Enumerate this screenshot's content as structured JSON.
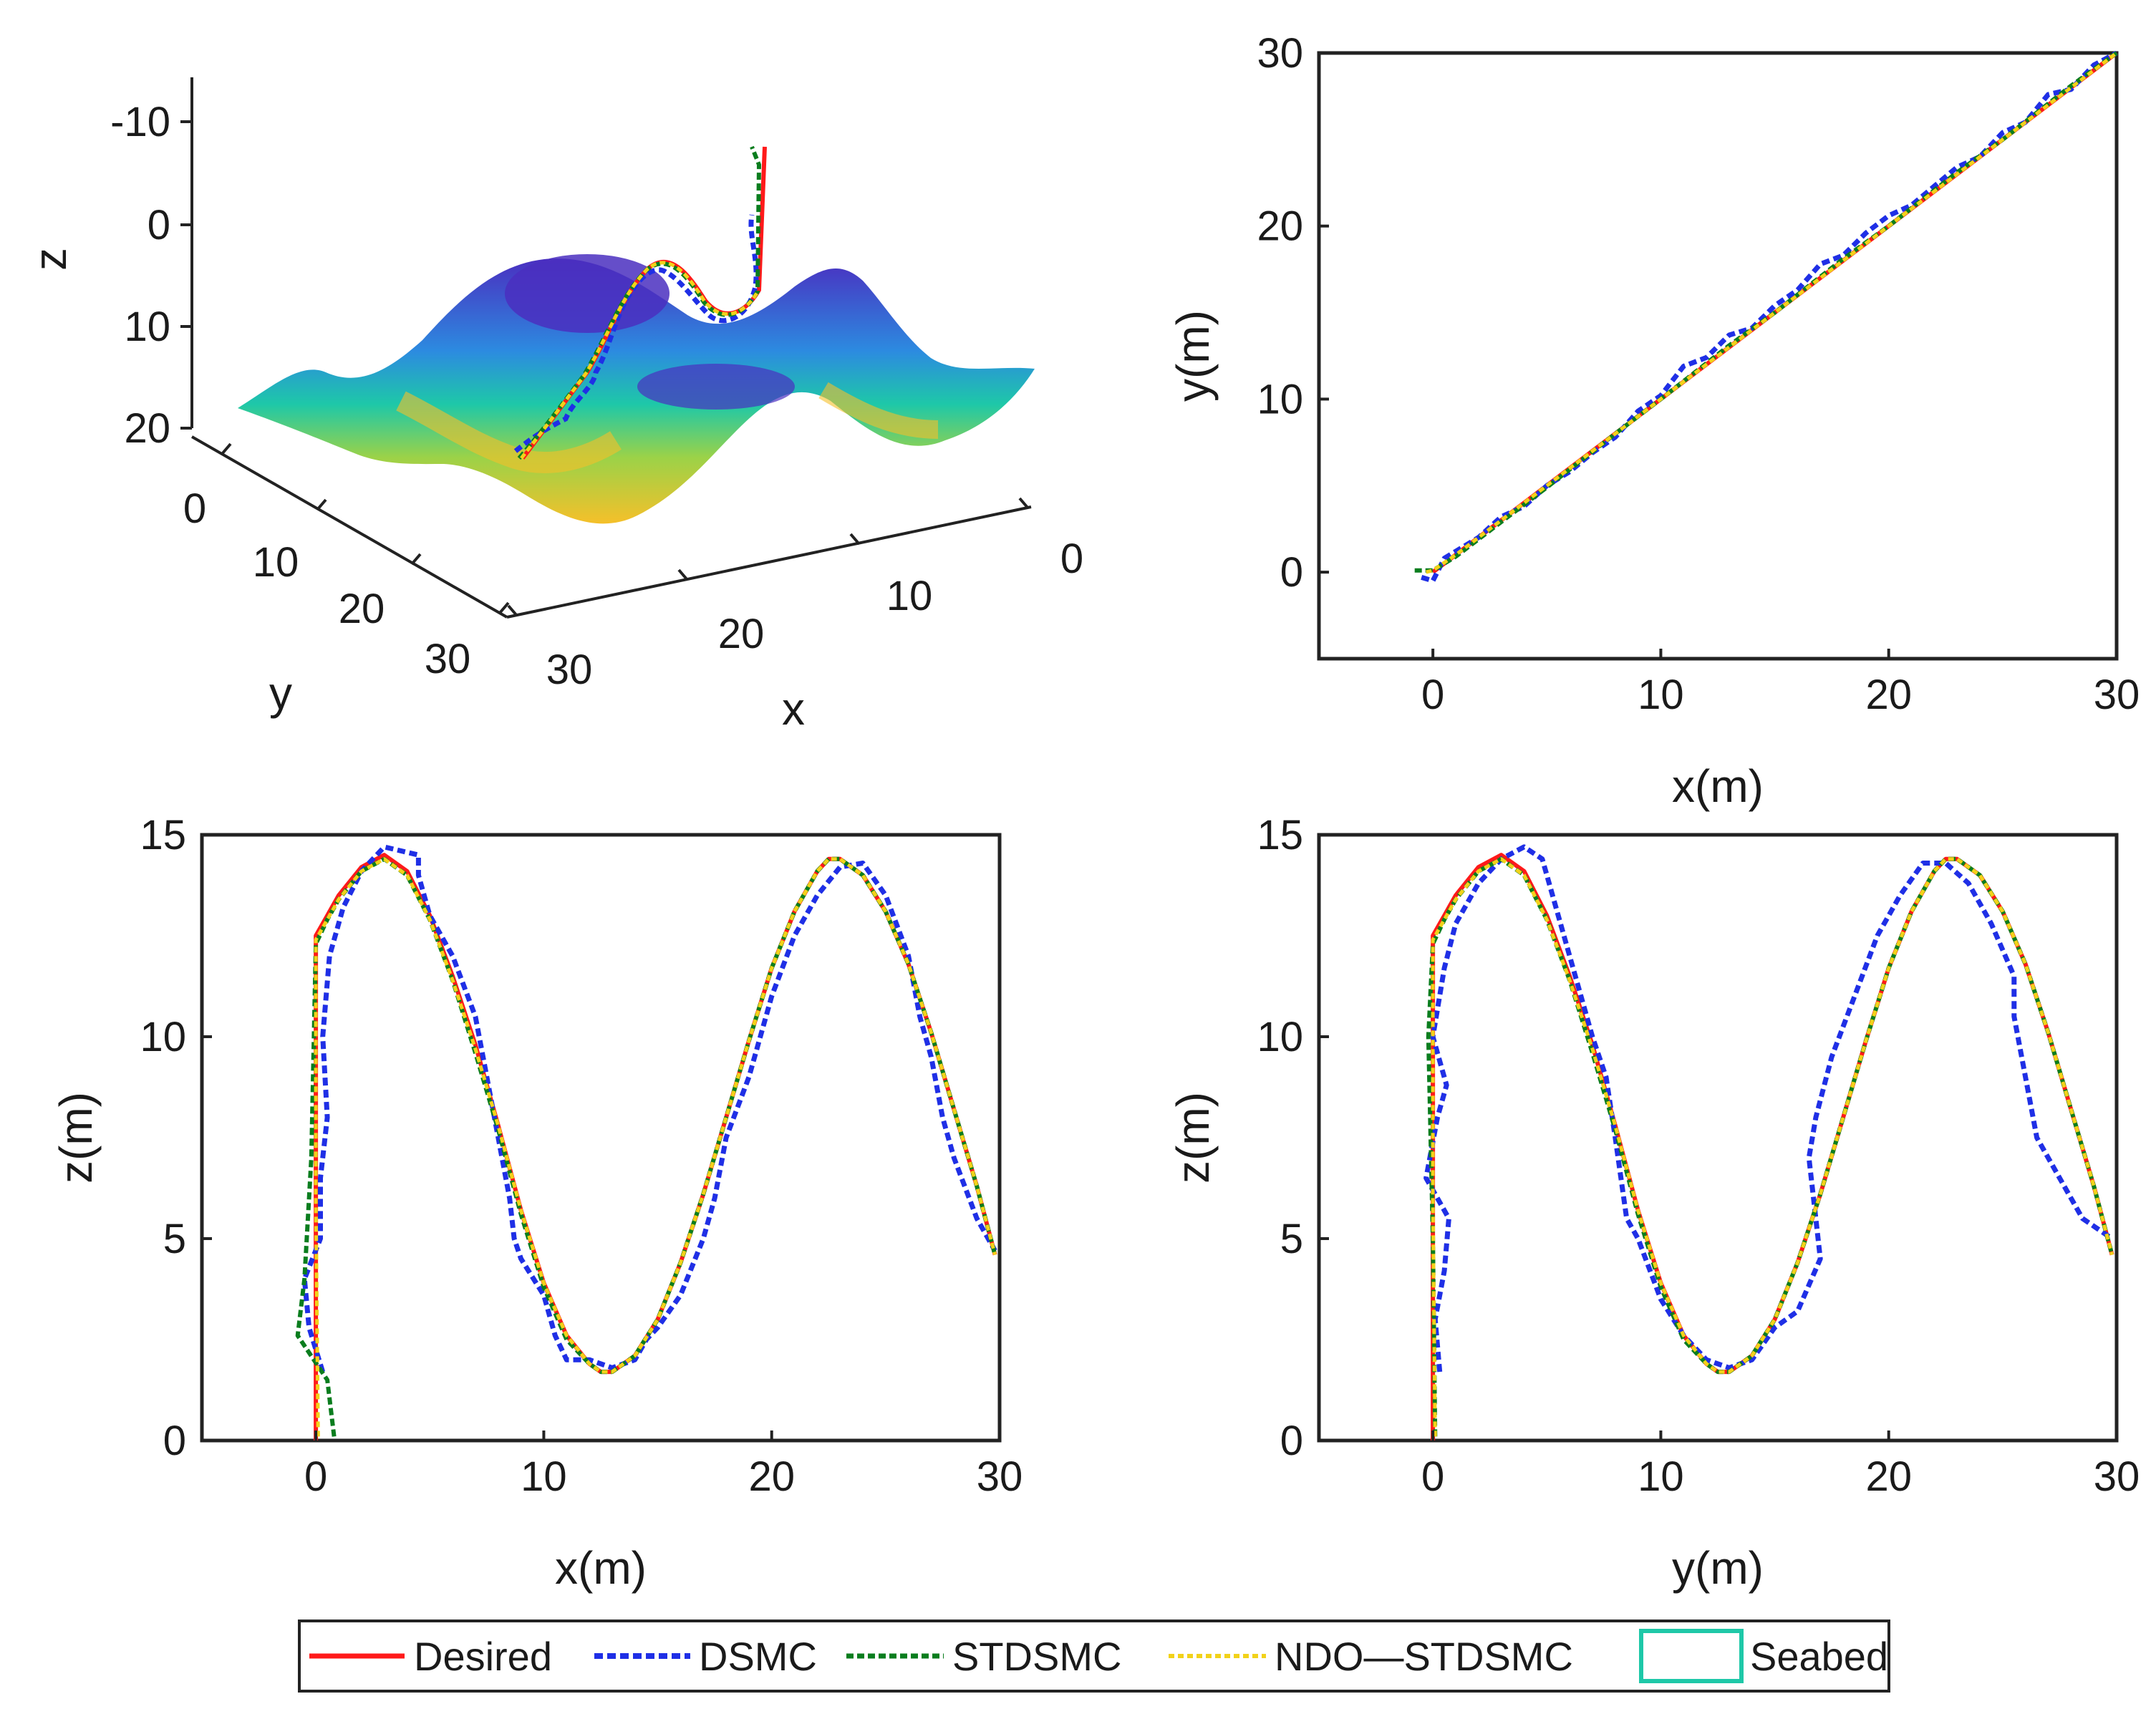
{
  "colors": {
    "desired": "#ff1a1a",
    "dsmc": "#1f2fe6",
    "stdsmc": "#0a7d1e",
    "ndo_stdsmc": "#f2d21a",
    "seabed": "#1ec8a8",
    "axis": "#222222"
  },
  "legend": {
    "placement": "bottom-center",
    "items": [
      {
        "key": "desired",
        "label": "Desired"
      },
      {
        "key": "dsmc",
        "label": "DSMC"
      },
      {
        "key": "stdsmc",
        "label": "STDSMC"
      },
      {
        "key": "ndo_stdsmc",
        "label": "NDO—STDSMC"
      },
      {
        "key": "seabed",
        "label": "Seabed"
      }
    ]
  },
  "chart_data": [
    {
      "type": "surface3d",
      "panel": "top-left",
      "xlabel": "x",
      "ylabel": "y",
      "zlabel": "z",
      "x_ticks": [
        "0",
        "10",
        "20",
        "30"
      ],
      "y_ticks": [
        "0",
        "10",
        "20",
        "30"
      ],
      "z_ticks": [
        "-10",
        "0",
        "10",
        "20"
      ],
      "xlim": [
        0,
        30
      ],
      "ylim": [
        0,
        30
      ],
      "zlim": [
        -15,
        20
      ],
      "z_reversed": true,
      "colormap": "parula",
      "surface": "seabed",
      "series": [
        "Desired",
        "DSMC",
        "STDSMC",
        "NDO—STDSMC"
      ]
    },
    {
      "type": "line",
      "panel": "top-right",
      "xlabel": "x(m)",
      "ylabel": "y(m)",
      "xlim": [
        -5,
        30
      ],
      "ylim": [
        -5,
        30
      ],
      "x_ticks": [
        "0",
        "10",
        "20",
        "30"
      ],
      "y_ticks": [
        "0",
        "10",
        "20",
        "30"
      ],
      "series": [
        {
          "name": "Desired",
          "x": [
            0,
            30
          ],
          "y": [
            0,
            30
          ]
        },
        {
          "name": "DSMC",
          "x": [
            -0.5,
            0,
            0.5,
            1,
            2,
            3,
            4,
            5,
            6,
            7,
            8,
            9,
            10,
            11,
            12,
            13,
            14,
            15,
            16,
            17,
            18,
            19,
            20,
            21,
            22,
            23,
            24,
            25,
            26,
            27,
            28,
            29,
            30
          ],
          "y": [
            -0.3,
            -0.5,
            0.8,
            1.2,
            2.0,
            3.2,
            3.8,
            5.0,
            5.8,
            6.9,
            7.8,
            9.3,
            10.2,
            11.9,
            12.4,
            13.7,
            14.1,
            15.4,
            16.3,
            17.8,
            18.3,
            19.6,
            20.6,
            21.2,
            22.3,
            23.4,
            24.0,
            25.4,
            26.0,
            27.6,
            27.9,
            29.3,
            30.0
          ]
        },
        {
          "name": "STDSMC",
          "x": [
            -0.8,
            0,
            1,
            3,
            5,
            8,
            10,
            13,
            15,
            18,
            20,
            23,
            25,
            28,
            30
          ],
          "y": [
            0.1,
            0.1,
            0.9,
            2.9,
            4.9,
            8.0,
            10.0,
            13.1,
            15.0,
            18.1,
            20.0,
            23.1,
            25.0,
            28.1,
            30.0
          ]
        },
        {
          "name": "NDO—STDSMC",
          "x": [
            -0.3,
            0,
            1,
            3,
            5,
            8,
            10,
            13,
            15,
            18,
            20,
            23,
            25,
            28,
            30
          ],
          "y": [
            0.0,
            0.1,
            1.0,
            3.0,
            5.0,
            8.0,
            10.0,
            13.0,
            15.0,
            18.0,
            20.0,
            23.0,
            25.0,
            28.0,
            30.0
          ]
        }
      ]
    },
    {
      "type": "line",
      "panel": "bottom-left",
      "xlabel": "x(m)",
      "ylabel": "z(m)",
      "xlim": [
        -5,
        30
      ],
      "ylim": [
        0,
        15
      ],
      "x_ticks": [
        "0",
        "10",
        "20",
        "30"
      ],
      "y_ticks": [
        "0",
        "5",
        "10",
        "15"
      ],
      "series": [
        {
          "name": "Desired",
          "x": [
            0,
            0,
            0,
            0.5,
            1,
            2,
            3,
            4,
            5,
            6,
            7,
            8,
            9,
            10,
            11,
            12,
            12.5,
            13,
            14,
            15,
            16,
            17,
            18,
            19,
            20,
            21,
            22,
            22.5,
            23,
            24,
            25,
            26,
            27,
            28,
            29,
            29.8
          ],
          "y": [
            0,
            6,
            12.5,
            13.0,
            13.5,
            14.2,
            14.5,
            14.1,
            13.0,
            11.5,
            9.8,
            7.8,
            5.7,
            3.9,
            2.6,
            1.9,
            1.7,
            1.7,
            2.1,
            3.0,
            4.4,
            6.1,
            8.0,
            9.9,
            11.7,
            13.1,
            14.1,
            14.4,
            14.4,
            14.0,
            13.1,
            11.8,
            10.1,
            8.2,
            6.3,
            4.6
          ]
        },
        {
          "name": "DSMC",
          "x": [
            0.3,
            -0.3,
            -0.5,
            0.2,
            0.2,
            0.5,
            0.3,
            0.6,
            1.2,
            2.0,
            3.0,
            4.5,
            4.5,
            5.0,
            6.0,
            7.0,
            7.5,
            8.0,
            8.5,
            8.7,
            9.0,
            10.0,
            10.5,
            11.0,
            12.0,
            13.0,
            14.0,
            14.5,
            15.0,
            16.0,
            17.0,
            17.5,
            18.0,
            19.0,
            20.0,
            21.0,
            22.0,
            23.0,
            24.0,
            25.0,
            26.0,
            26.5,
            27.0,
            27.5,
            28.0,
            29.0,
            29.8
          ],
          "y": [
            1.7,
            2.8,
            4.0,
            5.0,
            6.5,
            8.0,
            10.0,
            12.0,
            13.2,
            14.1,
            14.7,
            14.5,
            14.0,
            13.0,
            12.0,
            10.5,
            9.0,
            7.5,
            6.0,
            5.0,
            4.5,
            3.6,
            2.6,
            2.0,
            2.0,
            1.8,
            2.0,
            2.5,
            2.8,
            3.6,
            5.0,
            6.0,
            7.5,
            9.0,
            11.0,
            12.5,
            13.5,
            14.2,
            14.3,
            13.5,
            12.0,
            10.5,
            9.5,
            8.0,
            7.0,
            5.5,
            4.7
          ]
        },
        {
          "name": "STDSMC",
          "x": [
            0.8,
            0.5,
            -0.8,
            -0.5,
            -0.2,
            0,
            0.5,
            1,
            2,
            3,
            4,
            5,
            6,
            7,
            8,
            9,
            10,
            11,
            12,
            12.5,
            13,
            14,
            15,
            16,
            17,
            18,
            19,
            20,
            21,
            22,
            22.5,
            23,
            24,
            25,
            26,
            27,
            28,
            29,
            29.8
          ],
          "y": [
            0.1,
            1.5,
            2.6,
            4.0,
            7.0,
            12.3,
            12.9,
            13.4,
            14.1,
            14.4,
            14.0,
            12.9,
            11.4,
            9.6,
            7.7,
            5.6,
            3.8,
            2.5,
            1.9,
            1.7,
            1.7,
            2.1,
            3.0,
            4.4,
            6.1,
            8.0,
            9.9,
            11.7,
            13.1,
            14.1,
            14.4,
            14.4,
            14.0,
            13.1,
            11.8,
            10.1,
            8.2,
            6.3,
            4.6
          ]
        },
        {
          "name": "NDO—STDSMC",
          "x": [
            0.1,
            0,
            0,
            0.5,
            1,
            2,
            3,
            4,
            5,
            6,
            7,
            8,
            9,
            10,
            11,
            12,
            12.5,
            13,
            14,
            15,
            16,
            17,
            18,
            19,
            20,
            21,
            22,
            22.5,
            23,
            24,
            25,
            26,
            27,
            28,
            29,
            29.8
          ],
          "y": [
            0.1,
            6,
            12.4,
            12.9,
            13.4,
            14.1,
            14.4,
            14.0,
            12.9,
            11.4,
            9.7,
            7.8,
            5.7,
            3.9,
            2.6,
            1.9,
            1.7,
            1.7,
            2.1,
            3.0,
            4.4,
            6.1,
            8.0,
            9.9,
            11.7,
            13.1,
            14.1,
            14.4,
            14.4,
            14.0,
            13.1,
            11.8,
            10.1,
            8.2,
            6.3,
            4.6
          ]
        }
      ]
    },
    {
      "type": "line",
      "panel": "bottom-right",
      "xlabel": "y(m)",
      "ylabel": "z(m)",
      "xlim": [
        -5,
        30
      ],
      "ylim": [
        0,
        15
      ],
      "x_ticks": [
        "0",
        "10",
        "20",
        "30"
      ],
      "y_ticks": [
        "0",
        "5",
        "10",
        "15"
      ],
      "series": [
        {
          "name": "Desired",
          "x": [
            0,
            0,
            0,
            0.5,
            1,
            2,
            3,
            4,
            5,
            6,
            7,
            8,
            9,
            10,
            11,
            12,
            12.5,
            13,
            14,
            15,
            16,
            17,
            18,
            19,
            20,
            21,
            22,
            22.5,
            23,
            24,
            25,
            26,
            27,
            28,
            29,
            29.8
          ],
          "y": [
            0,
            6,
            12.5,
            13.0,
            13.5,
            14.2,
            14.5,
            14.1,
            13.0,
            11.5,
            9.8,
            7.8,
            5.7,
            3.9,
            2.6,
            1.9,
            1.7,
            1.7,
            2.1,
            3.0,
            4.4,
            6.1,
            8.0,
            9.9,
            11.7,
            13.1,
            14.1,
            14.4,
            14.4,
            14.0,
            13.1,
            11.8,
            10.1,
            8.2,
            6.3,
            4.6
          ]
        },
        {
          "name": "DSMC",
          "x": [
            0.3,
            0.1,
            0.5,
            0.7,
            -0.3,
            0.2,
            0.6,
            0.0,
            0.5,
            1.0,
            2.0,
            3.0,
            4.0,
            4.8,
            5.5,
            6.5,
            7.0,
            7.6,
            8.0,
            8.5,
            9.0,
            10.0,
            11.0,
            12.0,
            13.0,
            14.0,
            15.0,
            16.0,
            17.0,
            16.8,
            16.5,
            16.8,
            17.5,
            18.5,
            19.5,
            20.5,
            21.5,
            22.5,
            23.5,
            24.5,
            25.5,
            25.5,
            26.0,
            26.5,
            27.5,
            28.5,
            29.8
          ],
          "y": [
            1.7,
            3.0,
            4.2,
            5.5,
            6.5,
            8.0,
            8.8,
            10.0,
            11.7,
            12.8,
            13.8,
            14.4,
            14.7,
            14.4,
            13.0,
            11.0,
            10.0,
            9.0,
            7.5,
            5.5,
            5.0,
            3.5,
            2.6,
            2.0,
            1.8,
            2.0,
            2.8,
            3.2,
            4.5,
            5.5,
            7.0,
            8.0,
            9.5,
            11.0,
            12.5,
            13.5,
            14.3,
            14.3,
            13.8,
            12.8,
            11.5,
            10.5,
            9.0,
            7.5,
            6.5,
            5.5,
            5.0
          ]
        },
        {
          "name": "STDSMC",
          "x": [
            0.1,
            0.0,
            -0.2,
            0.0,
            0.5,
            1,
            2,
            3,
            4,
            5,
            6,
            7,
            8,
            9,
            10,
            11,
            12,
            12.5,
            13,
            14,
            15,
            16,
            17,
            18,
            19,
            20,
            21,
            22,
            22.5,
            23,
            24,
            25,
            26,
            27,
            28,
            29,
            29.8
          ],
          "y": [
            0.1,
            5.0,
            10.0,
            12.3,
            12.9,
            13.4,
            14.1,
            14.4,
            14.0,
            12.9,
            11.4,
            9.6,
            7.7,
            5.6,
            3.8,
            2.5,
            1.9,
            1.7,
            1.7,
            2.1,
            3.0,
            4.4,
            6.1,
            8.0,
            9.9,
            11.7,
            13.1,
            14.1,
            14.4,
            14.4,
            14.0,
            13.1,
            11.8,
            10.1,
            8.2,
            6.3,
            4.6
          ]
        },
        {
          "name": "NDO—STDSMC",
          "x": [
            0.1,
            0,
            0,
            0.5,
            1,
            2,
            3,
            4,
            5,
            6,
            7,
            8,
            9,
            10,
            11,
            12,
            12.5,
            13,
            14,
            15,
            16,
            17,
            18,
            19,
            20,
            21,
            22,
            22.5,
            23,
            24,
            25,
            26,
            27,
            28,
            29,
            29.8
          ],
          "y": [
            0.1,
            6,
            12.4,
            12.9,
            13.4,
            14.1,
            14.4,
            14.0,
            12.9,
            11.4,
            9.7,
            7.8,
            5.7,
            3.9,
            2.6,
            1.9,
            1.7,
            1.7,
            2.1,
            3.0,
            4.4,
            6.1,
            8.0,
            9.9,
            11.7,
            13.1,
            14.1,
            14.4,
            14.4,
            14.0,
            13.1,
            11.8,
            10.1,
            8.2,
            6.3,
            4.6
          ]
        }
      ]
    }
  ]
}
